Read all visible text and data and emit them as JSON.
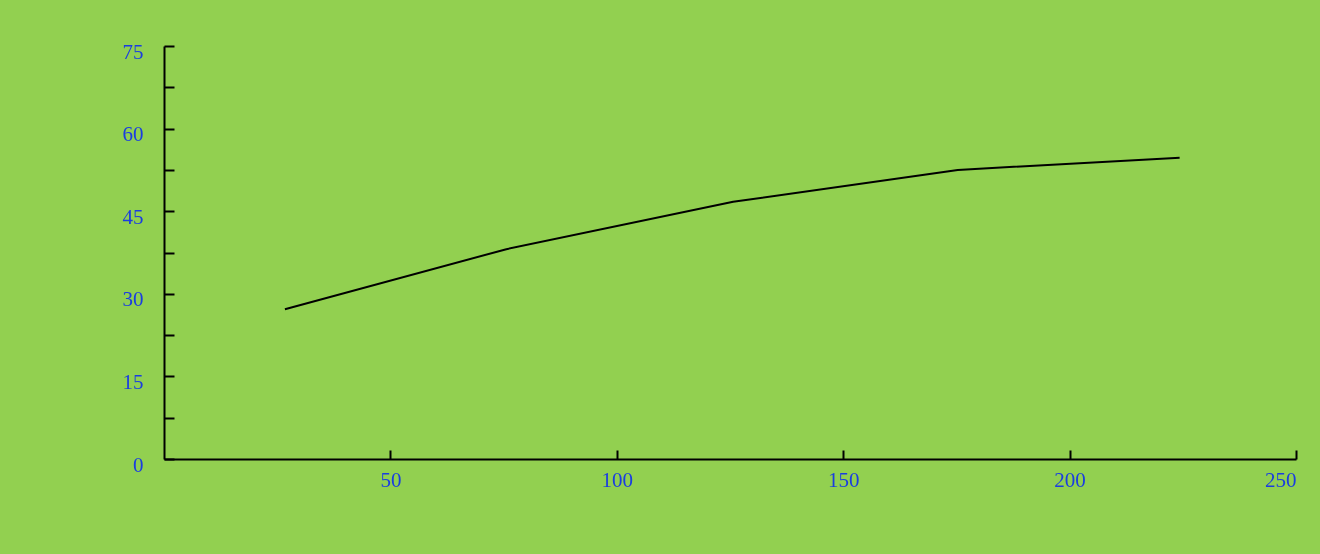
{
  "chart_data": {
    "type": "line",
    "x": [
      26.7,
      75.6,
      125.7,
      175.3,
      224.3
    ],
    "series": [
      {
        "color": "#000000",
        "values": [
          27.2,
          38.1,
          46.7,
          52.5,
          54.7
        ]
      }
    ],
    "xlim": [
      0,
      250
    ],
    "xticks": [
      50,
      100,
      150,
      200,
      250
    ],
    "ylim": [
      0,
      75
    ],
    "yticks": [
      0,
      {
        "value": 7.5,
        "label": null
      },
      15,
      {
        "value": 22.5,
        "label": null
      },
      30,
      {
        "value": 37.5,
        "label": null
      },
      45,
      {
        "value": 52.5,
        "label": null
      },
      60,
      {
        "value": 67.5,
        "label": null
      },
      75
    ],
    "grid": false,
    "marker": "none",
    "line_style": "solid"
  }
}
